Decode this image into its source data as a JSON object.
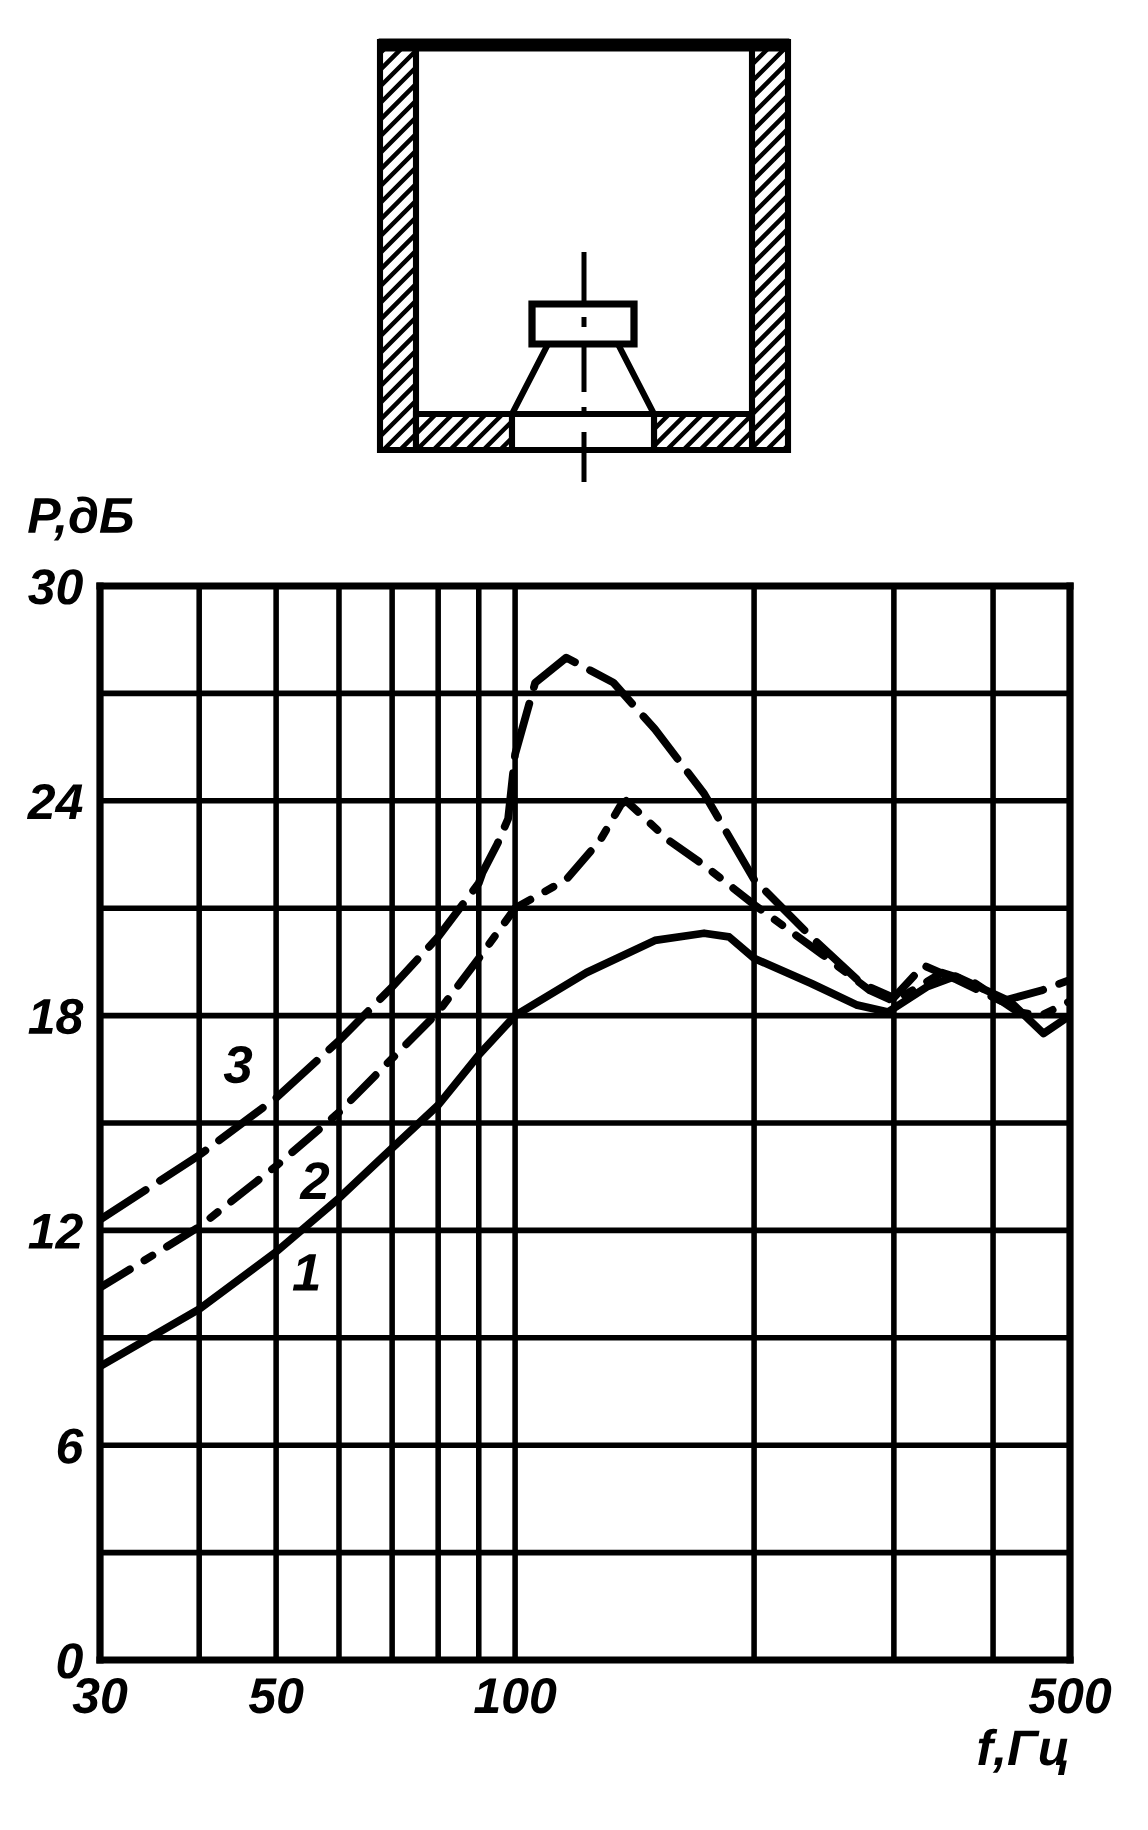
{
  "chart_data": {
    "type": "line",
    "xlabel": "f,Гц",
    "ylabel": "P,дБ",
    "log": "x",
    "grid": true,
    "xlim": [
      30,
      500
    ],
    "ylim": [
      0,
      30
    ],
    "xticks": [
      30,
      {
        "value": 40,
        "label": null
      },
      50,
      {
        "value": 60,
        "label": null
      },
      {
        "value": 70,
        "label": null
      },
      {
        "value": 80,
        "label": null
      },
      {
        "value": 90,
        "label": null
      },
      100,
      {
        "value": 200,
        "label": null
      },
      {
        "value": 300,
        "label": null
      },
      {
        "value": 400,
        "label": null
      },
      500
    ],
    "yticks": [
      0,
      {
        "value": 3,
        "label": null
      },
      6,
      {
        "value": 9,
        "label": null
      },
      12,
      {
        "value": 15,
        "label": null
      },
      18,
      {
        "value": 21,
        "label": null
      },
      24,
      {
        "value": 27,
        "label": null
      },
      30
    ],
    "series": [
      {
        "name": "1",
        "color": "#000000",
        "line_style": "solid",
        "x": [
          30,
          40,
          50,
          60,
          70,
          80,
          90,
          100,
          123,
          150,
          173,
          186,
          200,
          236,
          269,
          295,
          330,
          359,
          420,
          463,
          500
        ],
        "values": [
          8.2,
          9.8,
          11.4,
          12.9,
          14.3,
          15.5,
          16.9,
          18.0,
          19.2,
          20.1,
          20.3,
          20.2,
          19.6,
          18.9,
          18.3,
          18.1,
          18.8,
          19.1,
          18.4,
          17.5,
          18.0
        ]
      },
      {
        "name": "2",
        "color": "#000000",
        "line_style": "dashdot",
        "x": [
          30,
          40,
          50,
          60,
          70,
          80,
          90,
          100,
          116,
          128,
          136,
          138,
          156,
          173,
          200,
          244,
          280,
          300,
          345,
          380,
          430,
          460,
          500
        ],
        "values": [
          10.4,
          12.1,
          13.8,
          15.3,
          16.8,
          18.1,
          19.6,
          21.0,
          21.8,
          22.9,
          23.9,
          24.0,
          22.9,
          22.2,
          21.1,
          19.7,
          18.7,
          18.4,
          19.2,
          18.9,
          18.1,
          18.0,
          18.4
        ]
      },
      {
        "name": "3",
        "color": "#000000",
        "line_style": "dashed",
        "x": [
          30,
          40,
          50,
          60,
          70,
          80,
          90,
          91,
          95,
          98,
          100,
          106,
          116,
          133,
          150,
          173,
          200,
          236,
          273,
          300,
          327,
          360,
          410,
          460,
          500
        ],
        "values": [
          12.3,
          14.1,
          15.7,
          17.3,
          18.8,
          20.2,
          21.7,
          22.0,
          22.8,
          23.5,
          25.3,
          27.3,
          28.0,
          27.3,
          26.0,
          24.2,
          21.8,
          20.2,
          18.9,
          18.5,
          19.4,
          19.0,
          18.4,
          18.7,
          19.0
        ]
      }
    ]
  }
}
